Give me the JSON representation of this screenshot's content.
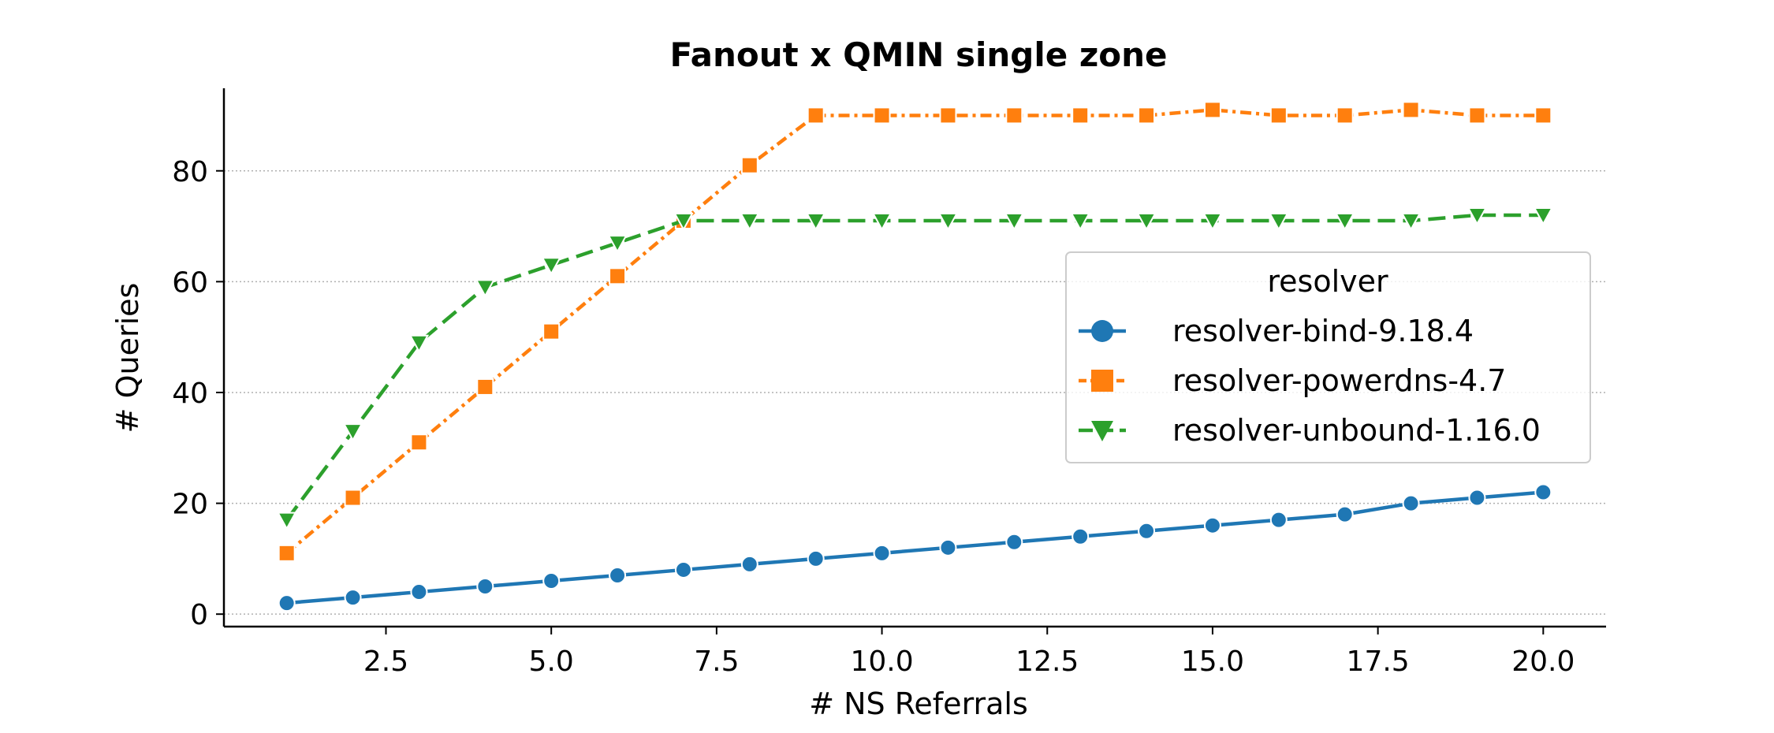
{
  "chart_data": {
    "type": "line",
    "title": "Fanout x QMIN single zone",
    "xlabel": "# NS Referrals",
    "ylabel": "# Queries",
    "xlim": [
      0.05,
      20.95
    ],
    "ylim": [
      -2.25,
      94.9
    ],
    "xticks": [
      2.5,
      5.0,
      7.5,
      10.0,
      12.5,
      15.0,
      17.5,
      20.0
    ],
    "xtick_labels": [
      "2.5",
      "5.0",
      "7.5",
      "10.0",
      "12.5",
      "15.0",
      "17.5",
      "20.0"
    ],
    "yticks": [
      0,
      20,
      40,
      60,
      80
    ],
    "ytick_labels": [
      "0",
      "20",
      "40",
      "60",
      "80"
    ],
    "grid": "y-dotted",
    "legend": {
      "title": "resolver",
      "position": "center-right"
    },
    "x": [
      1,
      2,
      3,
      4,
      5,
      6,
      7,
      8,
      9,
      10,
      11,
      12,
      13,
      14,
      15,
      16,
      17,
      18,
      19,
      20
    ],
    "series": [
      {
        "name": "resolver-bind-9.18.4",
        "color": "#1f77b4",
        "marker": "circle",
        "dash": "solid",
        "values": [
          2,
          3,
          4,
          5,
          6,
          7,
          8,
          9,
          10,
          11,
          12,
          13,
          14,
          15,
          16,
          17,
          18,
          20,
          21,
          22
        ]
      },
      {
        "name": "resolver-powerdns-4.7",
        "color": "#ff7f0e",
        "marker": "square",
        "dash": "dashdot",
        "values": [
          11,
          21,
          31,
          41,
          51,
          61,
          71,
          81,
          90,
          90,
          90,
          90,
          90,
          90,
          91,
          90,
          90,
          91,
          90,
          90
        ]
      },
      {
        "name": "resolver-unbound-1.16.0",
        "color": "#2ca02c",
        "marker": "triangle-down",
        "dash": "dashed",
        "values": [
          17,
          33,
          49,
          59,
          63,
          67,
          71,
          71,
          71,
          71,
          71,
          71,
          71,
          71,
          71,
          71,
          71,
          71,
          72,
          72
        ]
      }
    ]
  }
}
